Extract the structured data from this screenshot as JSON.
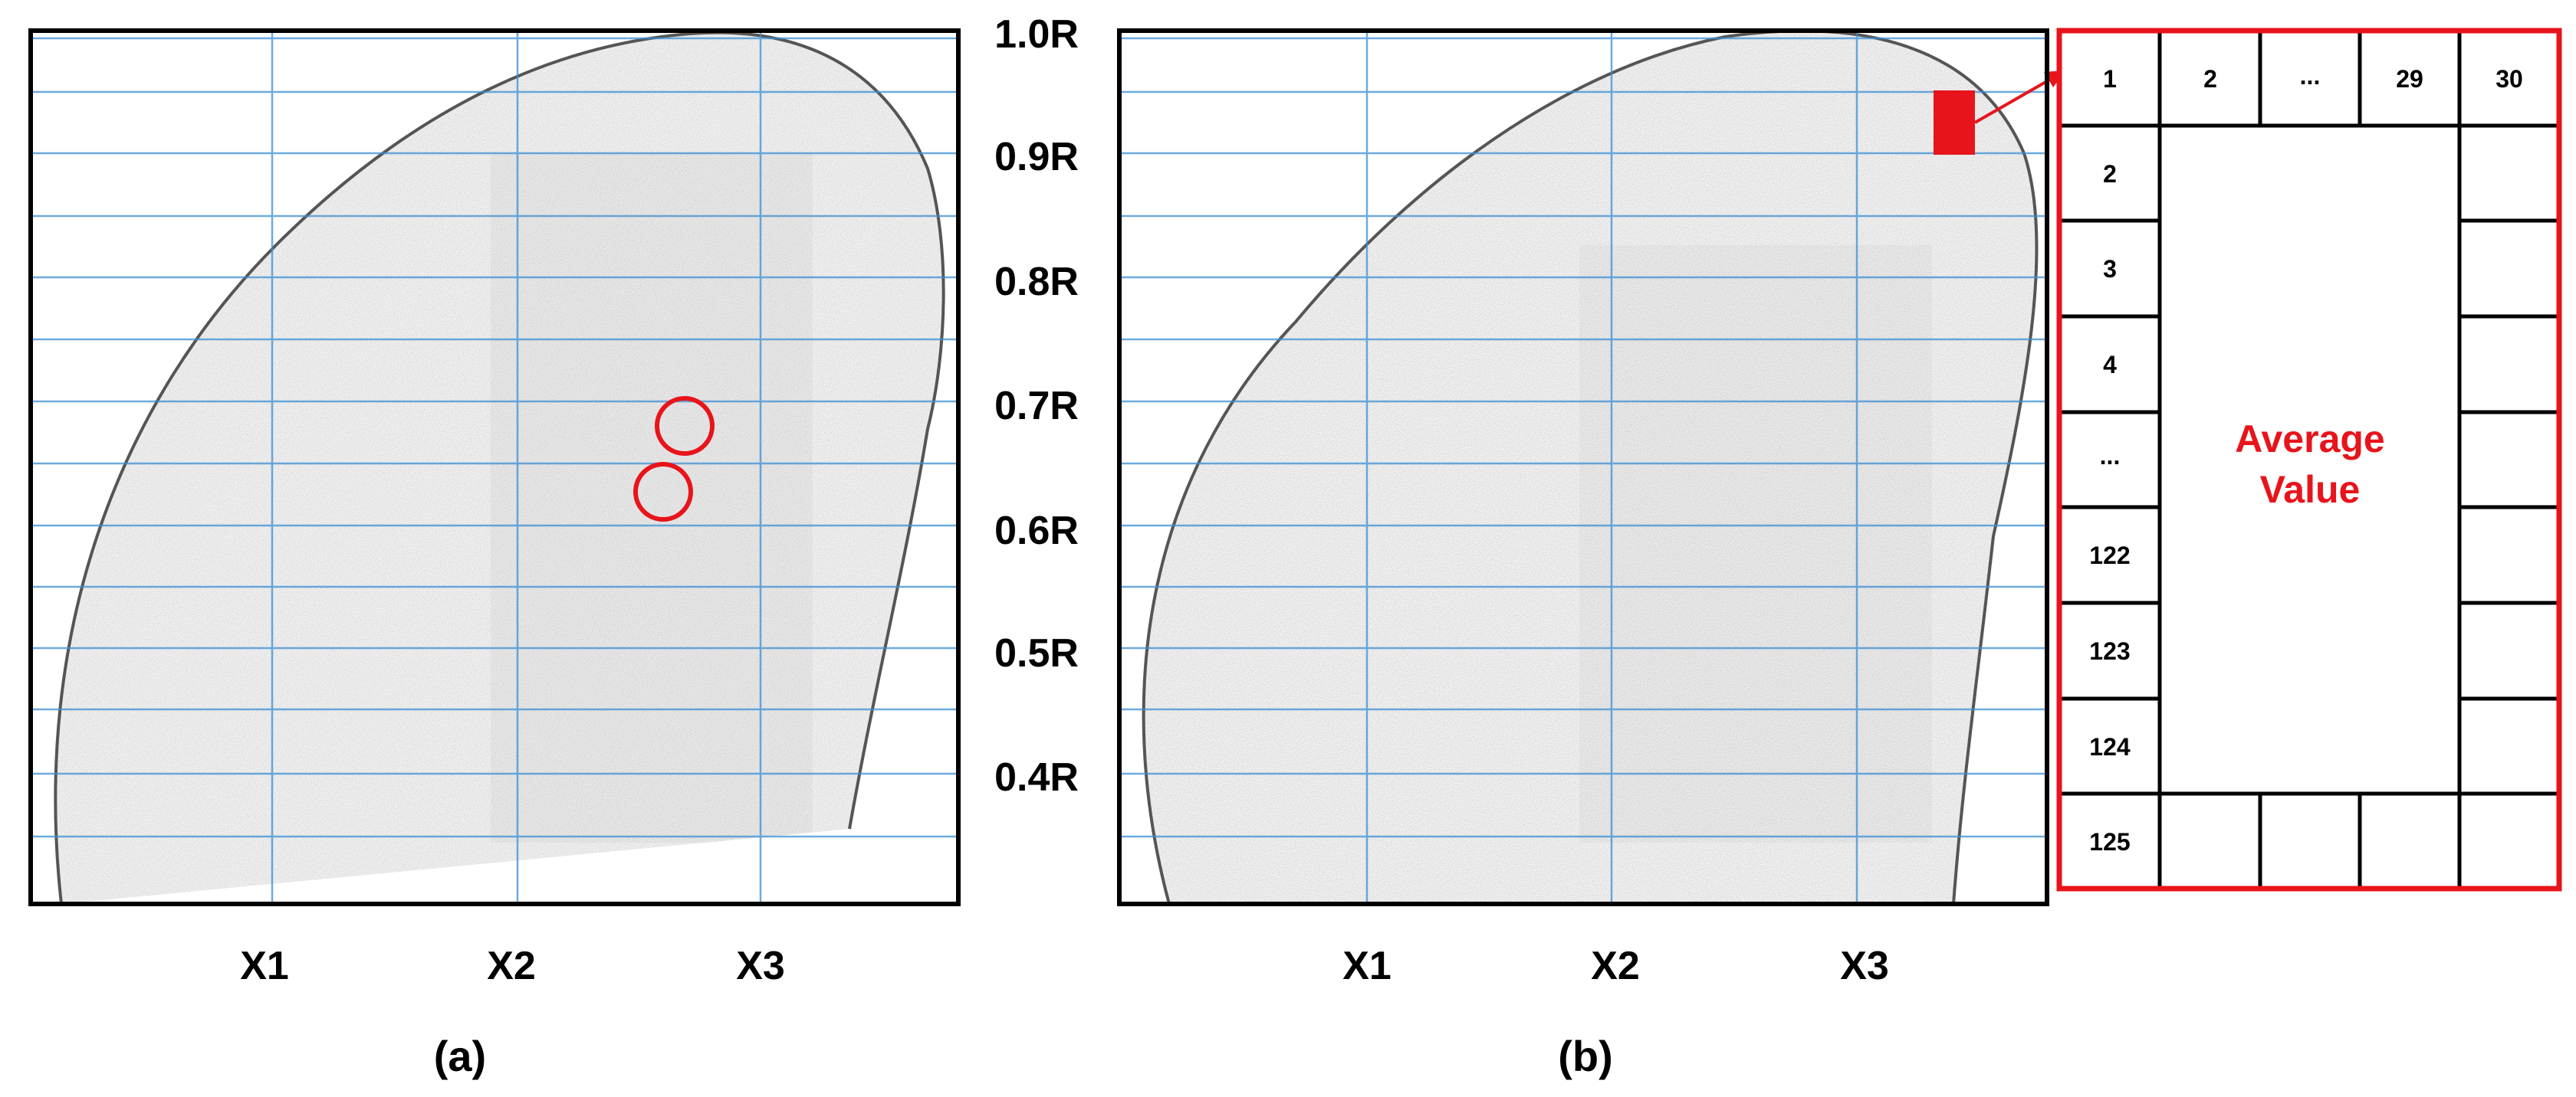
{
  "panels": [
    {
      "id": "a",
      "caption": "(a)",
      "x_labels": [
        "X1",
        "X2",
        "X3"
      ]
    },
    {
      "id": "b",
      "caption": "(b)",
      "x_labels": [
        "X1",
        "X2",
        "X3"
      ]
    }
  ],
  "r_labels": [
    "1.0R",
    "0.9R",
    "0.8R",
    "0.7R",
    "0.6R",
    "0.5R",
    "0.4R"
  ],
  "grid_table": {
    "top_row": [
      "1",
      "2",
      "...",
      "29",
      "30"
    ],
    "left_column": [
      "2",
      "3",
      "4",
      "...",
      "122",
      "123",
      "124",
      "125"
    ],
    "center_label_line1": "Average",
    "center_label_line2": "Value"
  },
  "colors": {
    "highlight": "#e8141b",
    "grid": "#3b8fd4",
    "outline": "#000000",
    "text": "#000000"
  }
}
